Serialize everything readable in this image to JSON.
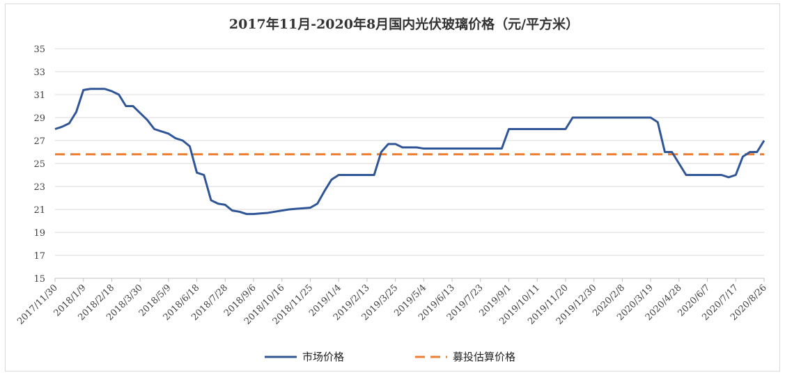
{
  "chart_data": {
    "type": "line",
    "title": "2017年11月-2020年8月国内光伏玻璃价格（元/平方米）",
    "categories": [
      "2017/11/30",
      null,
      null,
      null,
      "2018/1/9",
      null,
      null,
      null,
      "2018/2/18",
      null,
      null,
      null,
      "2018/3/30",
      null,
      null,
      null,
      "2018/5/9",
      null,
      null,
      null,
      "2018/6/18",
      null,
      null,
      null,
      "2018/7/28",
      null,
      null,
      null,
      "2018/9/6",
      null,
      null,
      null,
      "2018/10/16",
      null,
      null,
      null,
      "2018/11/25",
      null,
      null,
      null,
      "2019/1/4",
      null,
      null,
      null,
      "2019/2/13",
      null,
      null,
      null,
      "2019/3/25",
      null,
      null,
      null,
      "2019/5/4",
      null,
      null,
      null,
      "2019/6/13",
      null,
      null,
      null,
      "2019/7/23",
      null,
      null,
      null,
      "2019/9/1",
      null,
      null,
      null,
      "2019/10/11",
      null,
      null,
      null,
      "2019/11/20",
      null,
      null,
      null,
      "2019/12/30",
      null,
      null,
      null,
      "2020/2/8",
      null,
      null,
      null,
      "2020/3/19",
      null,
      null,
      null,
      "2020/4/28",
      null,
      null,
      null,
      "2020/6/7",
      null,
      null,
      null,
      "2020/7/17",
      null,
      null,
      null,
      "2020/8/26"
    ],
    "series": [
      {
        "name": "市场价格",
        "color": "#2f5597",
        "style": "solid",
        "values": [
          28,
          28.2,
          28.5,
          29.5,
          31.4,
          31.5,
          31.5,
          31.5,
          31.3,
          31,
          30,
          30,
          29.4,
          28.8,
          28,
          27.8,
          27.6,
          27.2,
          27,
          26.5,
          24.2,
          24,
          21.8,
          21.5,
          21.4,
          20.9,
          20.8,
          20.6,
          20.6,
          20.65,
          20.7,
          20.8,
          20.9,
          21,
          21.05,
          21.1,
          21.15,
          21.5,
          22.6,
          23.6,
          24,
          24,
          24,
          24,
          24,
          24,
          26,
          26.7,
          26.7,
          26.4,
          26.4,
          26.4,
          26.3,
          26.3,
          26.3,
          26.3,
          26.3,
          26.3,
          26.3,
          26.3,
          26.3,
          26.3,
          26.3,
          26.3,
          28,
          28,
          28,
          28,
          28,
          28,
          28,
          28,
          28,
          29,
          29,
          29,
          29,
          29,
          29,
          29,
          29,
          29,
          29,
          29,
          29,
          28.6,
          26,
          26,
          25,
          24,
          24,
          24,
          24,
          24,
          24,
          23.8,
          24,
          25.6,
          26,
          26,
          27
        ]
      },
      {
        "name": "募投估算价格",
        "color": "#ed7d31",
        "style": "dashed",
        "values": [
          25.8,
          25.8,
          25.8,
          25.8,
          25.8,
          25.8,
          25.8,
          25.8,
          25.8,
          25.8,
          25.8,
          25.8,
          25.8,
          25.8,
          25.8,
          25.8,
          25.8,
          25.8,
          25.8,
          25.8,
          25.8,
          25.8,
          25.8,
          25.8,
          25.8,
          25.8,
          25.8,
          25.8,
          25.8,
          25.8,
          25.8,
          25.8,
          25.8,
          25.8,
          25.8,
          25.8,
          25.8,
          25.8,
          25.8,
          25.8,
          25.8,
          25.8,
          25.8,
          25.8,
          25.8,
          25.8,
          25.8,
          25.8,
          25.8,
          25.8,
          25.8,
          25.8,
          25.8,
          25.8,
          25.8,
          25.8,
          25.8,
          25.8,
          25.8,
          25.8,
          25.8,
          25.8,
          25.8,
          25.8,
          25.8,
          25.8,
          25.8,
          25.8,
          25.8,
          25.8,
          25.8,
          25.8,
          25.8,
          25.8,
          25.8,
          25.8,
          25.8,
          25.8,
          25.8,
          25.8,
          25.8,
          25.8,
          25.8,
          25.8,
          25.8,
          25.8,
          25.8,
          25.8,
          25.8,
          25.8,
          25.8,
          25.8,
          25.8,
          25.8,
          25.8,
          25.8,
          25.8,
          25.8,
          25.8,
          25.8,
          25.8
        ]
      }
    ],
    "ylim": [
      15,
      35
    ],
    "yticks": [
      15,
      17,
      19,
      21,
      23,
      25,
      27,
      29,
      31,
      33,
      35
    ],
    "grid": true,
    "legend": "bottom"
  }
}
